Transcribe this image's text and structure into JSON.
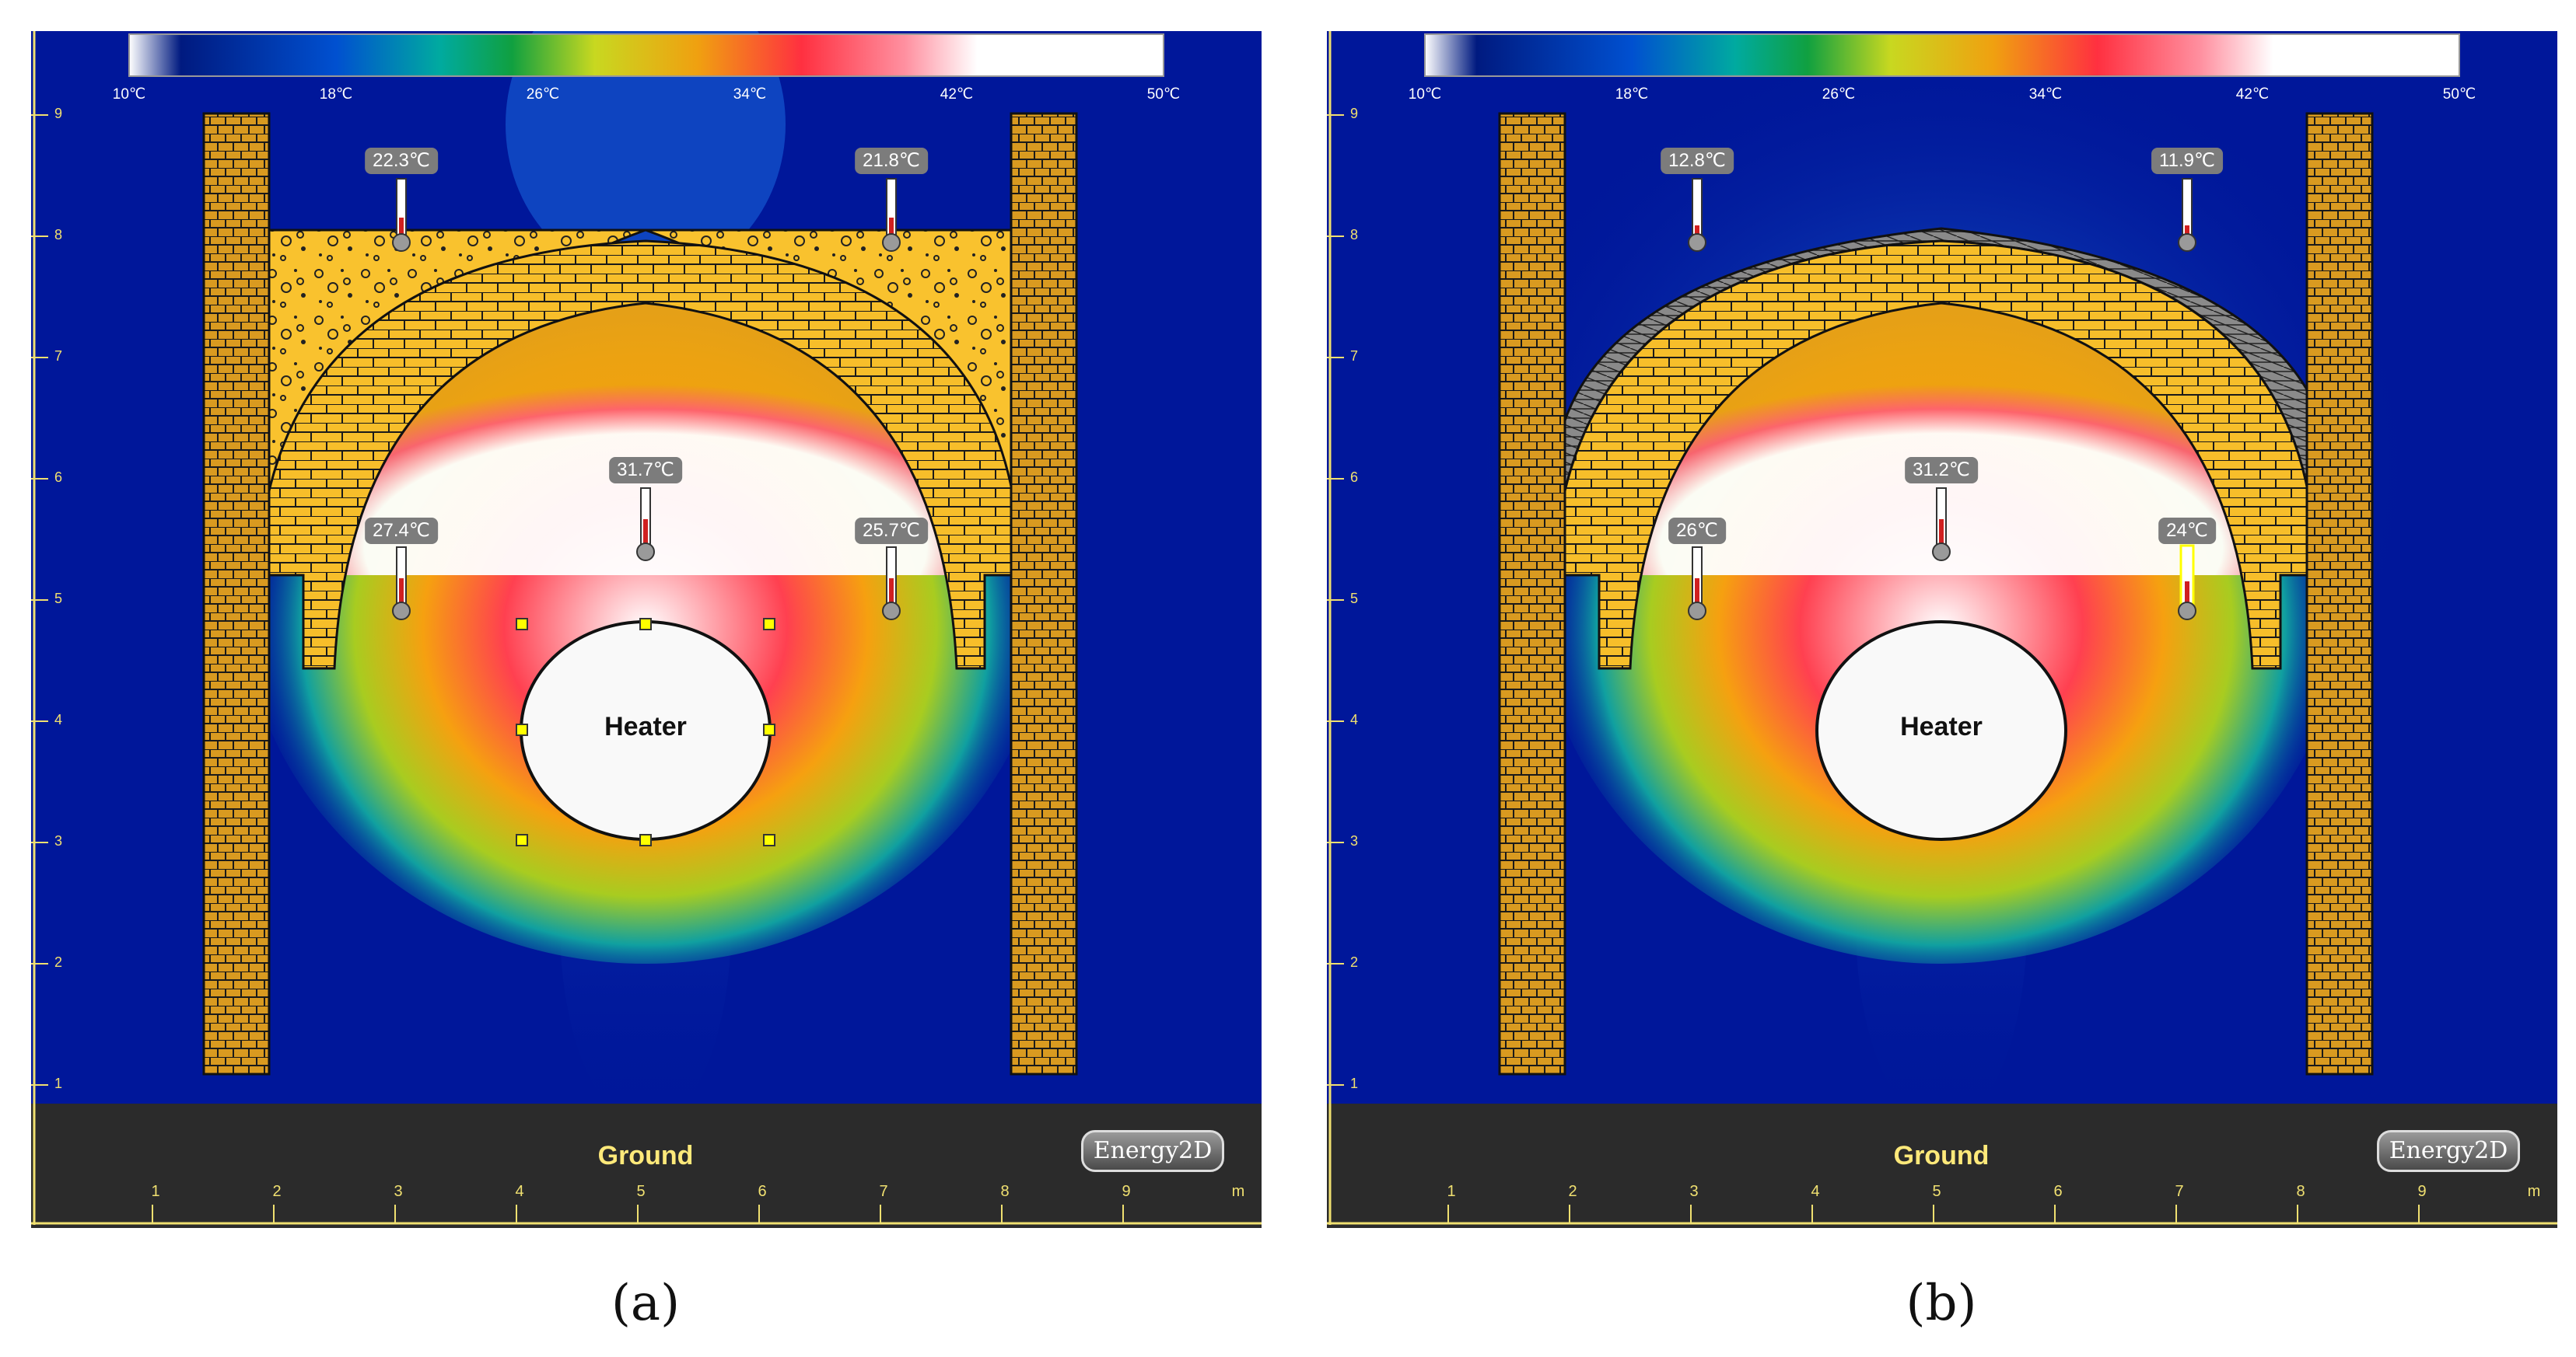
{
  "panels": [
    {
      "id": "a",
      "caption": "(a)",
      "colorbar": {
        "labels": [
          "10℃",
          "18℃",
          "26℃",
          "34℃",
          "42℃",
          "50℃"
        ]
      },
      "thermometers": [
        {
          "name": "top-left",
          "value": "22.3℃"
        },
        {
          "name": "top-right",
          "value": "21.8℃"
        },
        {
          "name": "center",
          "value": "31.7℃"
        },
        {
          "name": "mid-left",
          "value": "27.4℃"
        },
        {
          "name": "mid-right",
          "value": "25.7℃"
        }
      ],
      "heater_label": "Heater",
      "ground_label": "Ground",
      "logo": "Energy2D",
      "y_axis": [
        "9",
        "8",
        "7",
        "6",
        "5",
        "4",
        "3",
        "2",
        "1"
      ],
      "x_axis": [
        "1",
        "2",
        "3",
        "4",
        "5",
        "6",
        "7",
        "8",
        "9",
        "m"
      ],
      "fill_material": "insulating concrete",
      "heater_selected": true
    },
    {
      "id": "b",
      "caption": "(b)",
      "colorbar": {
        "labels": [
          "10℃",
          "18℃",
          "26℃",
          "34℃",
          "42℃",
          "50℃"
        ]
      },
      "thermometers": [
        {
          "name": "top-left",
          "value": "12.8℃"
        },
        {
          "name": "top-right",
          "value": "11.9℃"
        },
        {
          "name": "center",
          "value": "31.2℃"
        },
        {
          "name": "mid-left",
          "value": "26℃"
        },
        {
          "name": "mid-right",
          "value": "24℃"
        }
      ],
      "heater_label": "Heater",
      "ground_label": "Ground",
      "logo": "Energy2D",
      "y_axis": [
        "9",
        "8",
        "7",
        "6",
        "5",
        "4",
        "3",
        "2",
        "1"
      ],
      "x_axis": [
        "1",
        "2",
        "3",
        "4",
        "5",
        "6",
        "7",
        "8",
        "9",
        "m"
      ],
      "fill_material": "none",
      "heater_selected": false
    }
  ],
  "colors": {
    "background_field": "#00179a",
    "brick": "#f7be2a",
    "brick_mortar": "#1a1a1a",
    "ground": "#2b2b2b",
    "axis_text": "#f0e070"
  }
}
